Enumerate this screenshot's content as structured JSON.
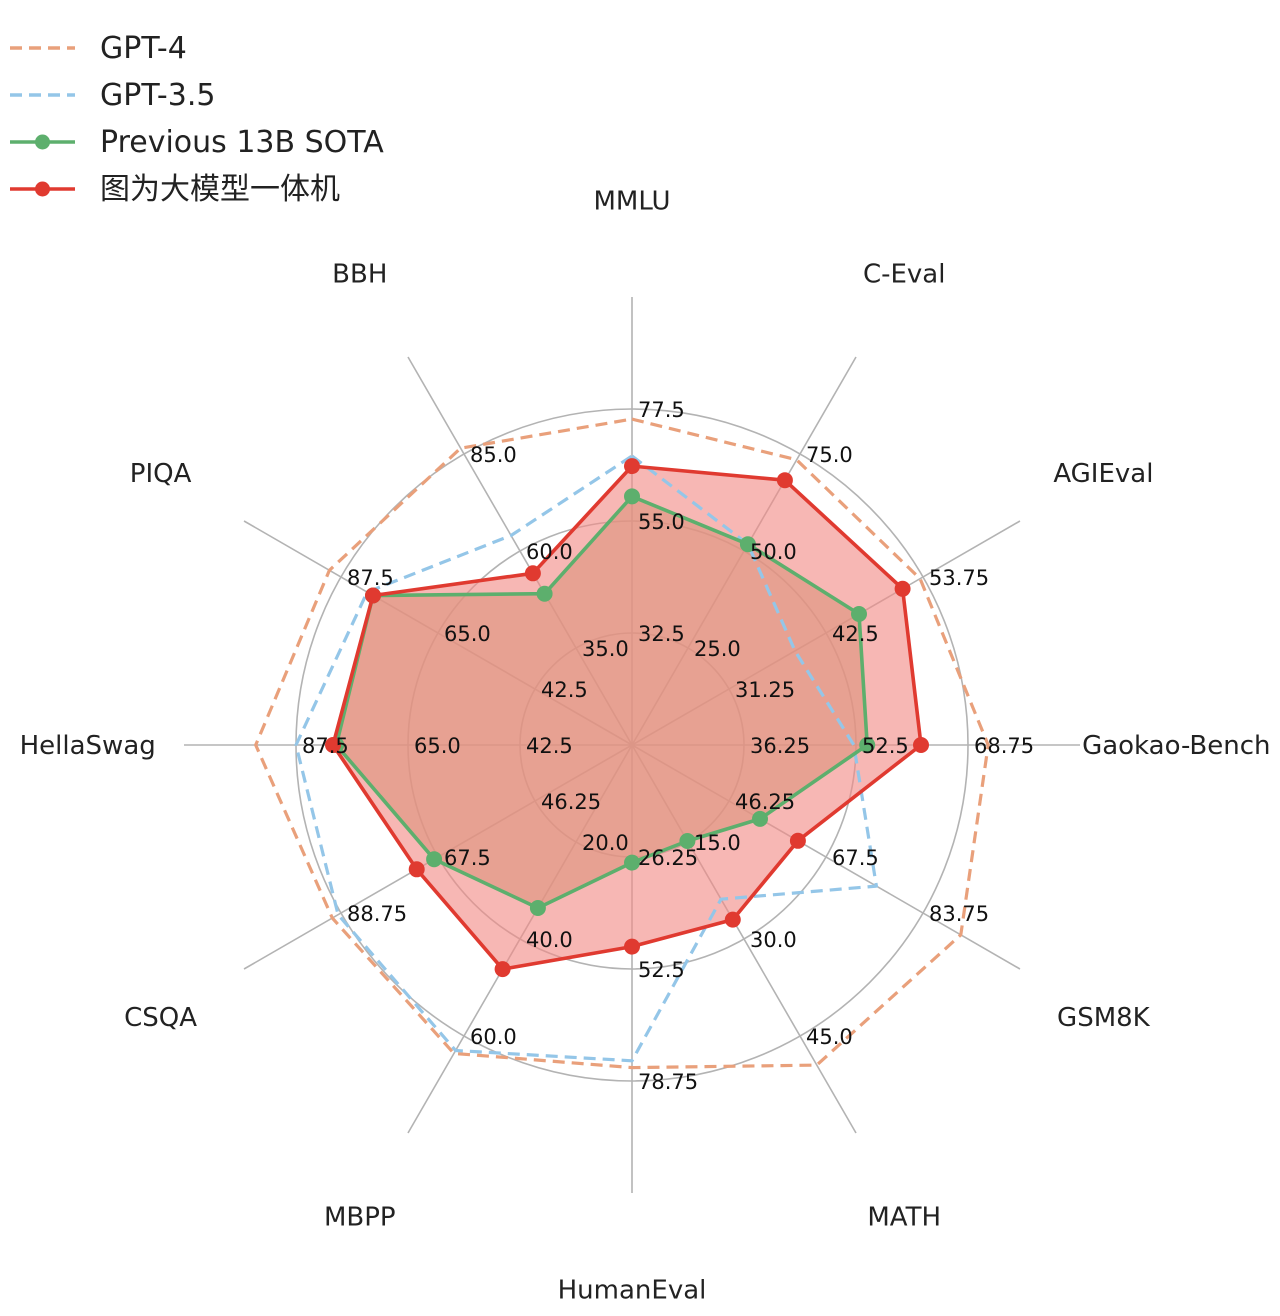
{
  "chart_data": {
    "type": "radar",
    "axes": [
      "MMLU",
      "C-Eval",
      "AGIEval",
      "Gaokao-Bench",
      "GSM8K",
      "MATH",
      "HumanEval",
      "MBPP",
      "CSQA",
      "HellaSwag",
      "PIQA",
      "BBH"
    ],
    "tick_labels": [
      [
        "32.5",
        "55.0",
        "77.5"
      ],
      [
        "25.0",
        "50.0",
        "75.0"
      ],
      [
        "31.25",
        "42.5",
        "53.75"
      ],
      [
        "36.25",
        "52.5",
        "68.75"
      ],
      [
        "46.25",
        "67.5",
        "83.75"
      ],
      [
        "15.0",
        "30.0",
        "45.0"
      ],
      [
        "26.25",
        "52.5",
        "78.75"
      ],
      [
        "20.0",
        "40.0",
        "60.0"
      ],
      [
        "46.25",
        "67.5",
        "88.75"
      ],
      [
        "42.5",
        "65.0",
        "87.5"
      ],
      [
        "42.5",
        "65.0",
        "87.5"
      ],
      [
        "35.0",
        "60.0",
        "85.0"
      ]
    ],
    "series": [
      {
        "name": "GPT-4",
        "style": "dashed",
        "color": "#E9A07B",
        "fill": false,
        "values": [
          0.97,
          0.98,
          0.99,
          1.06,
          1.13,
          1.1,
          0.96,
          1.06,
          1.03,
          1.12,
          1.04,
          1.02
        ]
      },
      {
        "name": "GPT-3.5",
        "style": "dashed",
        "color": "#94C6E8",
        "fill": false,
        "values": [
          0.86,
          0.69,
          0.56,
          0.66,
          0.84,
          0.53,
          0.94,
          1.05,
          1.01,
          1.0,
          0.91,
          0.72
        ]
      },
      {
        "name": "Previous 13B SOTA",
        "style": "solid",
        "color": "#5DAF6D",
        "marker": "circle",
        "fill": true,
        "fill_color": "#B9A16F",
        "values": [
          0.74,
          0.69,
          0.78,
          0.7,
          0.44,
          0.33,
          0.35,
          0.56,
          0.68,
          0.88,
          0.89,
          0.52
        ]
      },
      {
        "name": "图为大模型一体机",
        "style": "solid",
        "color": "#E03A30",
        "marker": "circle",
        "fill": true,
        "fill_color": "#F28A86",
        "values": [
          0.83,
          0.91,
          0.93,
          0.86,
          0.57,
          0.6,
          0.6,
          0.77,
          0.74,
          0.89,
          0.89,
          0.59
        ]
      }
    ],
    "grid": true,
    "legend_position": "top-left"
  }
}
